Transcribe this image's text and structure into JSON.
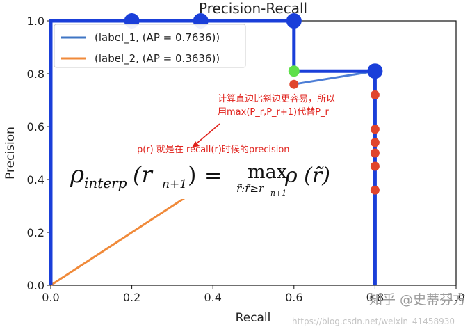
{
  "chart_data": {
    "type": "line",
    "title": "Precision-Recall",
    "xlabel": "Recall",
    "ylabel": "Precision",
    "xlim": [
      0.0,
      1.0
    ],
    "ylim": [
      0.0,
      1.0
    ],
    "x_ticks": [
      "0.0",
      "0.2",
      "0.4",
      "0.6",
      "0.8",
      "1.0"
    ],
    "y_ticks": [
      "0.0",
      "0.2",
      "0.4",
      "0.6",
      "0.8",
      "1.0"
    ],
    "legend_position": "top-left",
    "series": [
      {
        "name": "(label_1, (AP = 0.7636))",
        "color": "#1a3fd9",
        "x": [
          0.0,
          0.0,
          0.2,
          0.37,
          0.6,
          0.6,
          0.8,
          0.8,
          0.8
        ],
        "y": [
          0.0,
          1.0,
          1.0,
          1.0,
          1.0,
          0.81,
          0.81,
          0.8,
          0.0
        ]
      },
      {
        "name": "(label_2, (AP = 0.3636))",
        "color": "#f08a3a",
        "x": [
          0.0,
          0.36
        ],
        "y": [
          0.0,
          0.36
        ]
      }
    ],
    "markers": {
      "blue_points": {
        "color": "#1a3fd9",
        "x": [
          0.2,
          0.37,
          0.6,
          0.8
        ],
        "y": [
          1.0,
          1.0,
          1.0,
          0.81
        ]
      },
      "green_point": {
        "color": "#5fe04a",
        "x": [
          0.6
        ],
        "y": [
          0.81
        ]
      },
      "red_points": {
        "color": "#e0452c",
        "x": [
          0.6,
          0.8,
          0.8,
          0.8,
          0.8,
          0.8,
          0.8
        ],
        "y": [
          0.76,
          0.72,
          0.59,
          0.54,
          0.5,
          0.45,
          0.36
        ]
      }
    },
    "diagonal_segment": {
      "x": [
        0.6,
        0.8
      ],
      "y": [
        0.76,
        0.81
      ],
      "color": "#4d7ed6"
    },
    "annotations": [
      {
        "text_line1": "计算直边比斜边更容易，所以",
        "text_line2": "用max(P_r,P_r+1)代替P_r",
        "color": "#e0221c"
      },
      {
        "text": "p(r) 就是在 recall(r)时候的precision",
        "color": "#e0221c"
      }
    ],
    "formula": {
      "lhs": "ρ",
      "lhs_sub": "interp",
      "arg_open": "(r",
      "arg_sub": "n+1",
      "arg_close": ")",
      "equals": "=",
      "max_word": "max",
      "max_sub": "r̃:r̃≥r",
      "max_sub_sub": "n+1",
      "rhs": "ρ (r̃)"
    }
  },
  "watermark": {
    "brand": "知乎 @史蒂芬方",
    "url_faint": "https://blog.csdn.net/weixin_41458930"
  }
}
